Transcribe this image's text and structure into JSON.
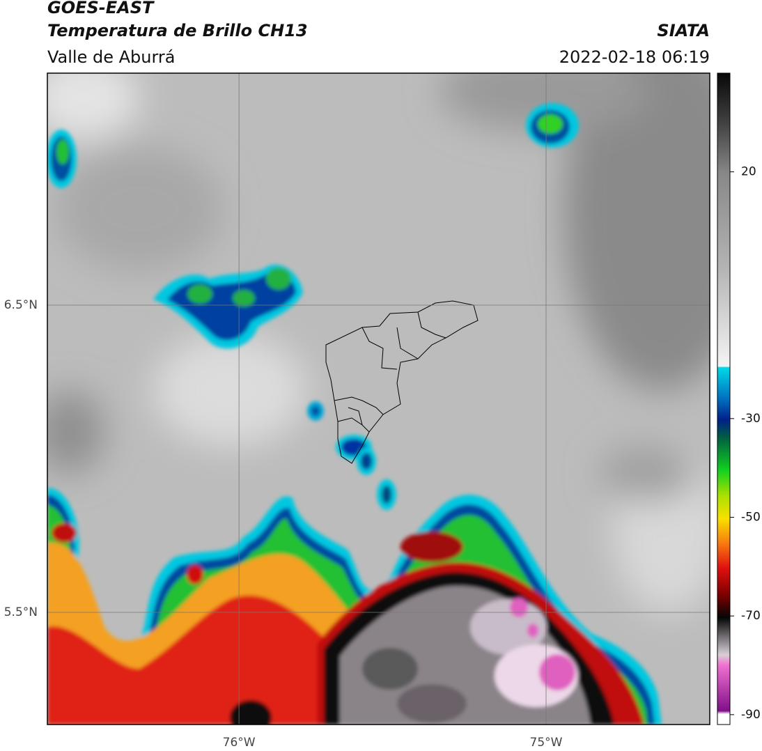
{
  "header": {
    "title": "GOES-EAST",
    "subtitle": "Temperatura de Brillo CH13",
    "region": "Valle de Aburrá",
    "source": "SIATA",
    "datetime": "2022-02-18 06:19"
  },
  "map": {
    "xlim": [
      -76.624,
      -74.467
    ],
    "ylim": [
      5.135,
      7.255
    ],
    "xticks": [
      {
        "value": -76,
        "label": "76°W"
      },
      {
        "value": -75,
        "label": "75°W"
      }
    ],
    "yticks": [
      {
        "value": 6.5,
        "label": "6.5°N"
      },
      {
        "value": 5.5,
        "label": "5.5°N"
      }
    ],
    "grid": true
  },
  "colorbar": {
    "lim": [
      -92,
      40
    ],
    "ticks": [
      20,
      -30,
      -50,
      -70,
      -90
    ]
  }
}
